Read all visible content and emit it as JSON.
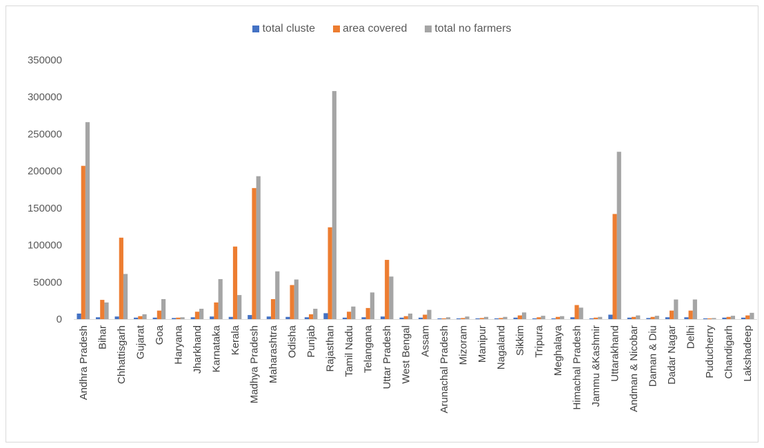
{
  "chart_data": {
    "type": "bar",
    "title": "",
    "xlabel": "",
    "ylabel": "",
    "ylim": [
      0,
      350000
    ],
    "yticks": [
      0,
      50000,
      100000,
      150000,
      200000,
      250000,
      300000,
      350000
    ],
    "grid": false,
    "legend_position": "top",
    "categories": [
      "Andhra Pradesh",
      "Bihar",
      "Chhattisgarh",
      "Gujarat",
      "Goa",
      "Haryana",
      "Jharkhand",
      "Karnataka",
      "Kerala",
      "Madhya Pradesh",
      "Maharashtra",
      "Odisha",
      "Punjab",
      "Rajasthan",
      "Tamil Nadu",
      "Telangana",
      "Uttar Pradesh",
      "West Bengal",
      "Assam",
      "Arunachal Pradesh",
      "Mizoram",
      "Manipur",
      "Nagaland",
      "Sikkim",
      "Tripura",
      "Meghalaya",
      "Himachal Pradesh",
      "Jammu &Kashmir",
      "Uttarakhand",
      "Andman & Nicobar",
      "Daman & Diu",
      "Dadar Nagar",
      "Delhi",
      "Puducherry",
      "Chandigarh",
      "Lakshadeep"
    ],
    "series": [
      {
        "name": "total cluste",
        "color": "#4472C4",
        "values": [
          7500,
          2500,
          3500,
          2000,
          2000,
          1500,
          2500,
          3500,
          3000,
          5500,
          3500,
          3000,
          2500,
          8000,
          2000,
          2500,
          3500,
          2000,
          2000,
          1000,
          1000,
          1000,
          1000,
          2000,
          1000,
          1000,
          2500,
          1000,
          6000,
          2000,
          1500,
          2500,
          2500,
          1000,
          2000,
          2000
        ]
      },
      {
        "name": "area covered",
        "color": "#ED7D31",
        "values": [
          207000,
          26000,
          110000,
          4000,
          11500,
          2000,
          10000,
          22500,
          98000,
          177000,
          27000,
          46000,
          6500,
          124000,
          10000,
          15000,
          80000,
          4000,
          6000,
          1000,
          1500,
          1500,
          1500,
          5000,
          2500,
          3000,
          19000,
          2000,
          142000,
          3000,
          3000,
          11500,
          11500,
          1000,
          3000,
          5000
        ]
      },
      {
        "name": "total no farmers",
        "color": "#A5A5A5",
        "values": [
          266000,
          22500,
          61000,
          6500,
          27000,
          2500,
          14000,
          54000,
          32500,
          193000,
          64500,
          53500,
          14000,
          308000,
          17000,
          36000,
          57500,
          7500,
          12500,
          2500,
          3500,
          3000,
          3000,
          9000,
          4500,
          4000,
          15500,
          3000,
          226000,
          5000,
          4500,
          26500,
          26500,
          1500,
          4500,
          8500
        ]
      }
    ]
  }
}
